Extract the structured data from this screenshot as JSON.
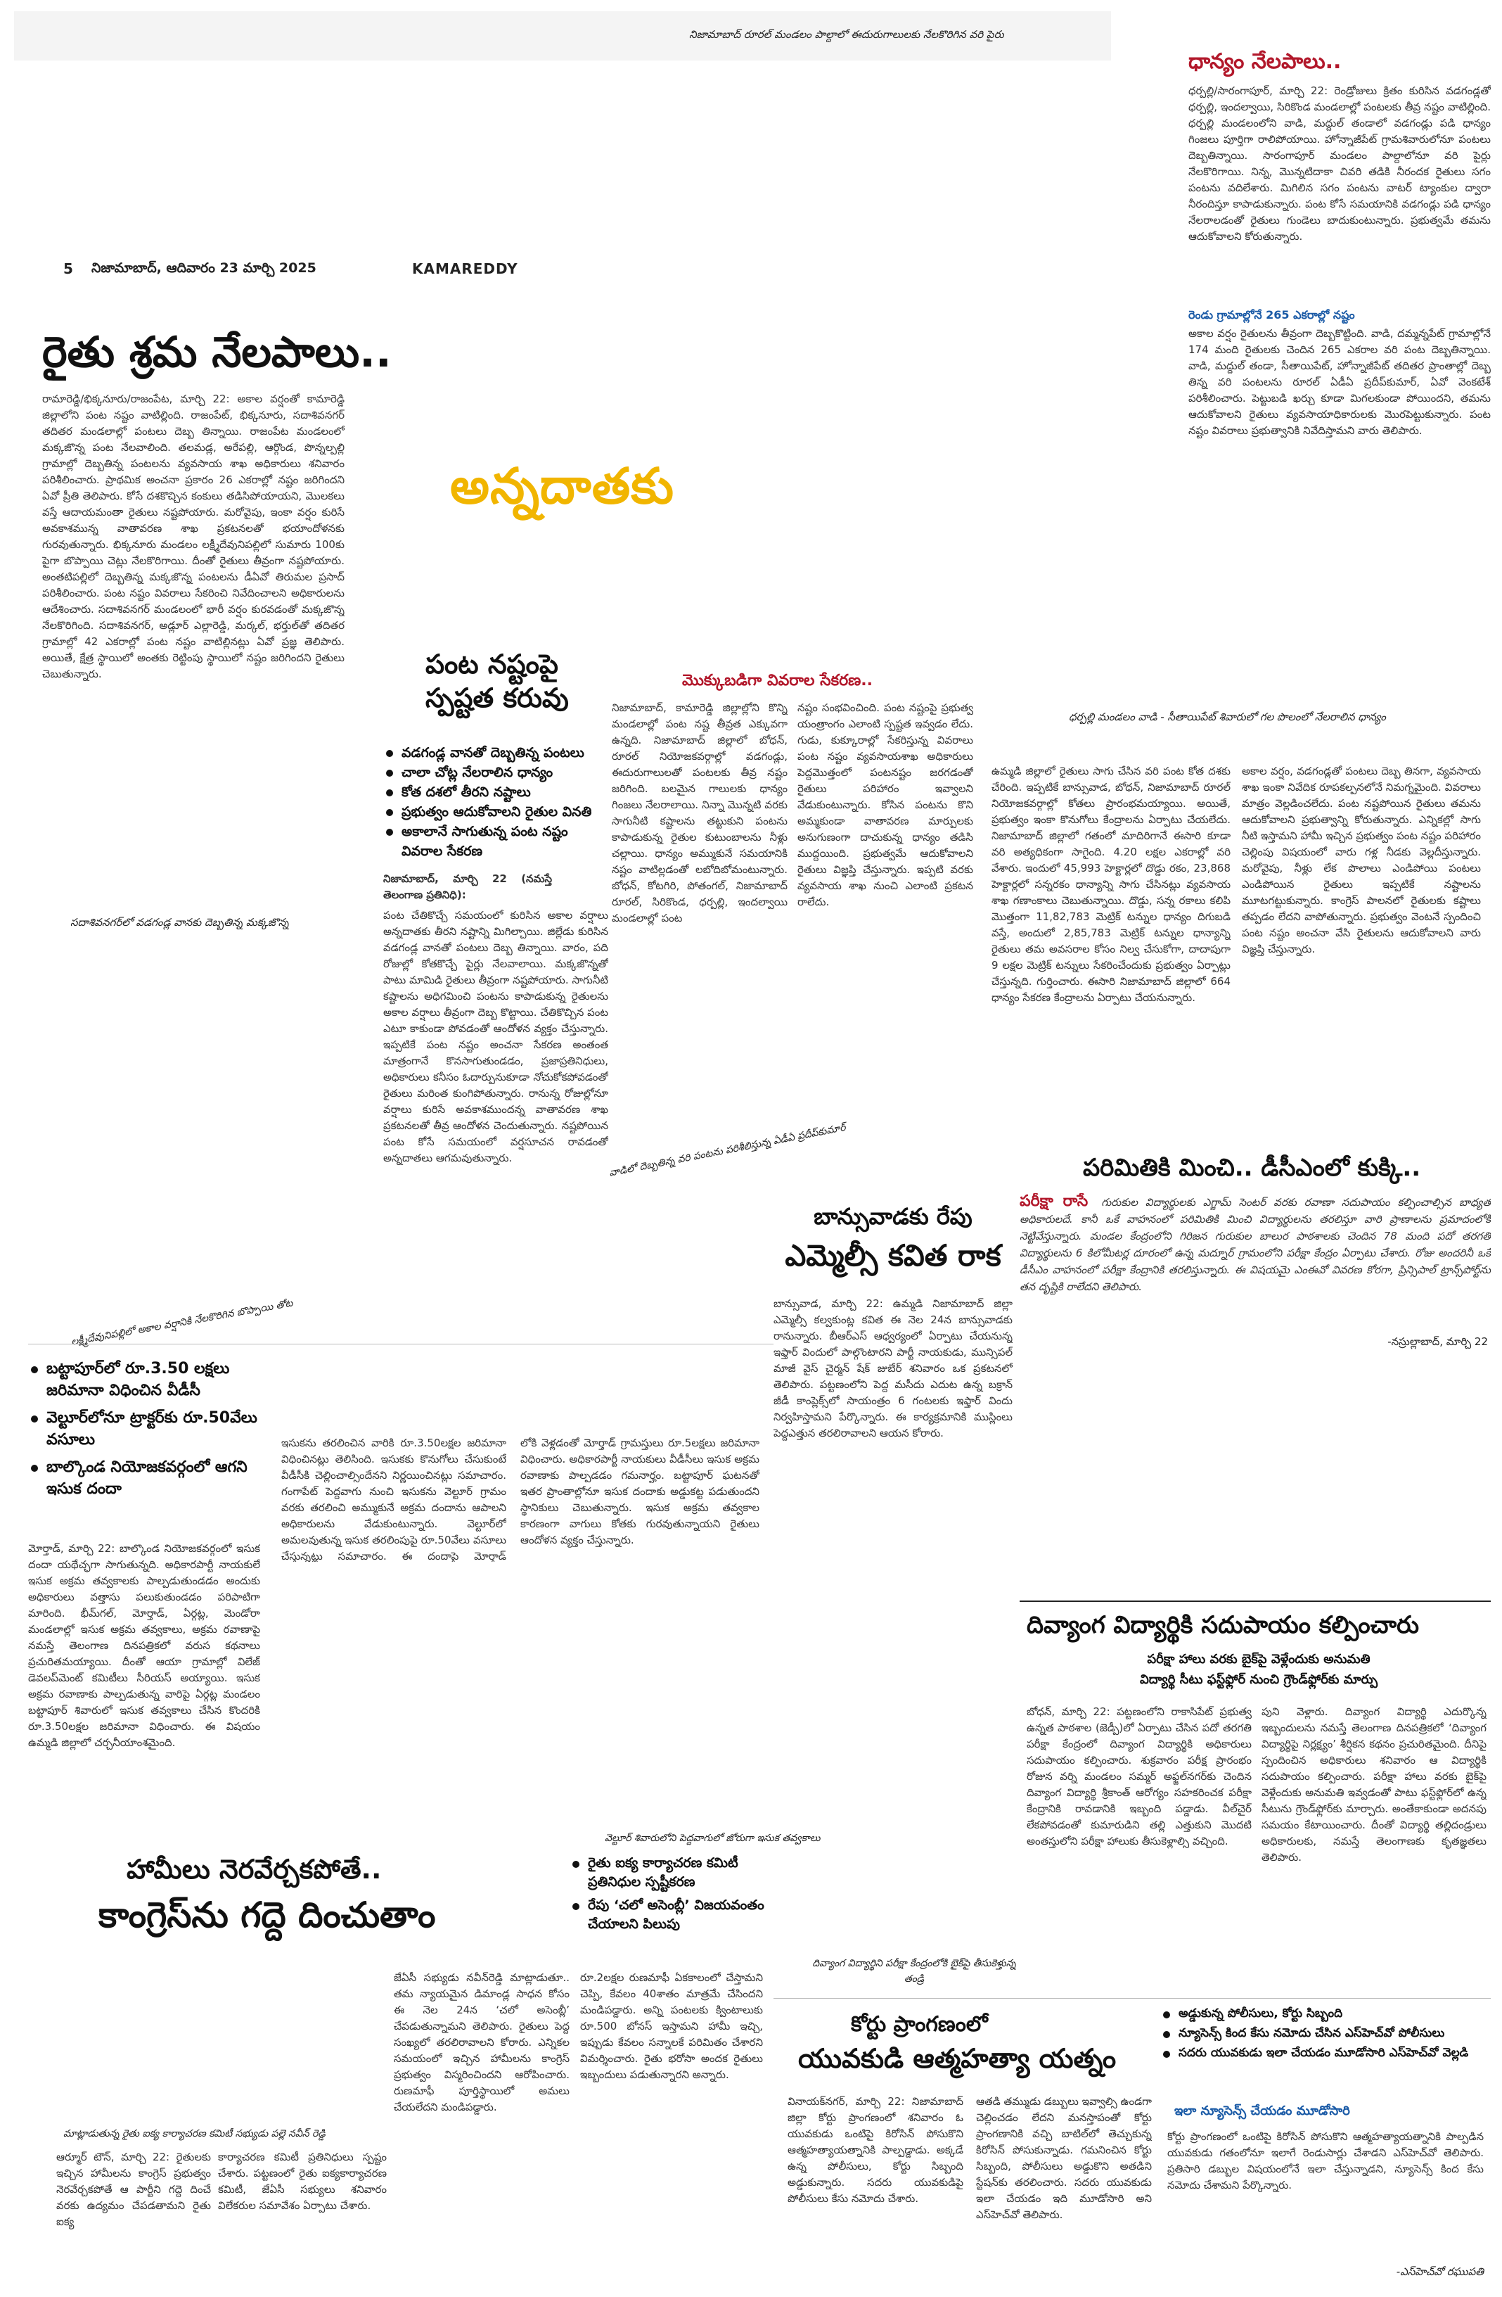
{
  "header": {
    "page_number": "5",
    "dateline": "నిజామాబాద్, ఆదివారం 23 మార్చి 2025",
    "edition": "KAMAREDDY"
  },
  "top_photo": {
    "caption": "నిజామాబాద్ రూరల్ మండలం పాల్దాలో ఈదురుగాలులకు నేలకొరిగిన వరి పైరు"
  },
  "sidebar_story": {
    "headline": "ధాన్యం నేలపాలు..",
    "body": "ధర్పల్లి/సారంగాపూర్, మార్చి 22: రెండ్రోజులు క్రితం కురిసిన వడగండ్లతో ధర్పల్లి, ఇందల్వాయి, సిరికొండ మండలాల్లో పంటలకు తీవ్ర నష్టం వాటిల్లింది. ధర్పల్లి మండలంలోని వాడి, మద్దుల్ తండాలో వడగండ్లు పడి ధాన్యం గింజలు పూర్తిగా రాలిపోయాయి. హోన్నాజీపేట్ గ్రామశివారులోనూ పంటలు దెబ్బతిన్నాయి. సారంగాపూర్ మండలం పాల్దాలోనూ వరి పైర్లు నేలకొరిగాయి. నిన్న, మొన్నటిదాకా చివరి తడికి నీరందక రైతులు సగం పంటను వదిలేశారు. మిగిలిన సగం పంటను వాటర్ ట్యాంకుల ద్వారా నీరందిస్తూ కాపాడుకున్నారు. పంట కోసే సమయానికి వడగండ్లు పడి ధాన్యం నేలరాలడంతో రైతులు గుండెలు బాదుకుంటున్నారు. ప్రభుత్వమే తమను ఆదుకోవాలని కోరుతున్నారు.",
    "subhead": "రెండు గ్రామాల్లోనే 265 ఎకరాల్లో నష్టం",
    "body2": "అకాల వర్షం రైతులను తీవ్రంగా దెబ్బకొట్టింది. వాడి, దమ్మన్నపేట్ గ్రామాల్లోనే 174 మంది రైతులకు చెందిన 265 ఎకరాల వరి పంట దెబ్బతిన్నాయి. వాడి, మద్దుల్ తండా, సీతాయిపేట్, హోన్నాజీపేట్ తదితర ప్రాంతాల్లో దెబ్బ తిన్న వరి పంటలను రూరల్ ఏడీఏ ప్రదీప్‌కుమార్, ఏవో వెంకటేశ్ పరిశీలించారు. పెట్టుబడి ఖర్చు కూడా మిగలకుండా పోయిందని, తమను ఆదుకోవాలని రైతులు వ్యవసాయాధికారులకు మొరపెట్టుకున్నారు. పంట నష్టం వివరాలు ప్రభుత్వానికి నివేదిస్తామని వారు తెలిపారు."
  },
  "main_story": {
    "headline": "రైతు శ్రమ నేలపాలు..",
    "kicker": "అన్నదాతకు",
    "body_left": "రామారెడ్డి/భిక్కనూరు/రాజంపేట, మార్చి 22: అకాల వర్షంతో కామారెడ్డి జిల్లాలోని పంట నష్టం వాటిల్లింది. రాజంపేట్, భిక్కనూరు, సదాశివనగర్ తదితర మండలాల్లో పంటలు దెబ్బ తిన్నాయి. రాజంపేట మండలంలో మక్కజొన్న పంట నేలవాలింది. తలమడ్ల, అరేపల్లి, ఆర్గొండ, పొన్నల్పల్లి గ్రామాల్లో దెబ్బతిన్న పంటలను వ్యవసాయ శాఖ అధికారులు శనివారం పరిశీలించారు. ప్రాథమిక అంచనా ప్రకారం 26 ఎకరాల్లో నష్టం జరిగిందని ఏవో ప్రీతి తెలిపారు. కోసే దశకొచ్చిన కంకులు తడిసిపోయాయని, మొలకలు వస్తే ఆదాయమంతా రైతులు నష్టపోయారు. మరోవైపు, ఇంకా వర్షం కురిసే అవకాశమున్న వాతావరణ శాఖ ప్రకటనలతో భయాందోళనకు గురవుతున్నారు. భిక్కనూరు మండలం లక్ష్మీదేవునిపల్లిలో సుమారు 100కు పైగా బొప్పాయి చెట్లు నేలకొరిగాయి. దీంతో రైతులు తీవ్రంగా నష్టపోయారు. అంతటిపల్లిలో దెబ్బతిన్న మక్కజొన్న పంటలను డీఏవో తిరుమల ప్రసాద్ పరిశీలించారు. పంట నష్టం వివరాలు సేకరించి నివేదించాలని అధికారులను ఆదేశించారు. సదాశివనగర్ మండలంలో భారీ వర్షం కురవడంతో మక్కజొన్న నేలకొరిగింది. సదాశివనగర్, అడ్లూర్ ఎల్లారెడ్డి, మర్కల్, భర్తుల్‌తో తదితర గ్రామాల్లో 42 ఎకరాల్లో పంట నష్టం వాటిల్లినట్లు ఏవో ప్రజ్ఞ తెలిపారు. అయితే, క్షేత్ర స్థాయిలో అంతకు రెట్టింపు స్థాయిలో నష్టం జరిగిందని రైతులు చెబుతున్నారు."
  },
  "photo_rain_village": {
    "caption": "సదాశివనగర్‌లో వడగండ్ల వానకు దెబ్బతిన్న మక్కజొన్న"
  },
  "photo_papaya": {
    "caption": "లక్ష్మీదేవునిపల్లిలో అకాల వర్షానికి నేలకొరిగిన బొప్పాయి తోట"
  },
  "clarity_story": {
    "headline": "పంట నష్టంపై స్పష్టత కరువు",
    "bullets": [
      "వడగండ్ల వానతో దెబ్బతిన్న పంటలు",
      "చాలా చోట్ల నేలరాలిన ధాన్యం",
      "కోత దశలో తీరని నష్టాలు",
      "ప్రభుత్వం ఆదుకోవాలని రైతుల వినతి",
      "అకాలానే సాగుతున్న పంట నష్టం వివరాల సేకరణ"
    ],
    "dateline": "నిజామాబాద్, మార్చి 22 (నమస్తే తెలంగాణ ప్రతినిధి):",
    "body": "పంట చేతికొచ్చే సమయంలో కురిసిన అకాల వర్షాలు అన్నదాతకు తీరని నష్టాన్ని మిగిల్చాయి. జిల్లేడు కురిసిన వడగండ్ల వానతో పంటలు దెబ్బ తిన్నాయి. వారం, పది రోజుల్లో కోతకొచ్చే పైర్లు నేలవాలాయి. మక్కజొన్నతో పాటు మామిడి రైతులు తీవ్రంగా నష్టపోయారు. సాగునీటి కష్టాలను అధిగమించి పంటను కాపాడుకున్న రైతులను అకాల వర్షాలు తీవ్రంగా దెబ్బ కొట్టాయి. చేతికొచ్చిన పంట ఎటూ కాకుండా పోవడంతో ఆందోళన వ్యక్తం చేస్తున్నారు. ఇప్పటికే పంట నష్టం అంచనా సేకరణ అంతంత మాత్రంగానే కొనసాగుతుండడం, ప్రజాప్రతినిధులు, అధికారులు కనీసం ఓదార్పునుకూడా నోచుకోకపోవడంతో రైతులు మరింత కుంగిపోతున్నారు. రానున్న రోజుల్లోనూ వర్షాలు కురిసే అవకాశముందన్న వాతావరణ శాఖ ప్రకటనలతో తీవ్ర ఆందోళన చెందుతున్నారు. నష్టపోయిన పంట కోసే సమయంలో వర్షసూచన రావడంతో అన్నదాతలు ఆగమవుతున్నారు."
  },
  "collection_story": {
    "headline": "మొక్కుబడిగా వివరాల సేకరణ..",
    "body_a": "నిజామాబాద్, కామారెడ్డి జిల్లాల్లోని కొన్ని మండలాల్లో పంట నష్ట తీవ్రత ఎక్కువగా ఉన్నది. నిజామాబాద్ జిల్లాలో బోధన్, రూరల్ నియోజకవర్గాల్లో వడగండ్లు, ఈదురుగాలులతో పంటలకు తీవ్ర నష్టం జరిగింది. బలమైన గాలులకు ధాన్యం గింజలు నేలరాలాయి. నిన్నా మొన్నటి వరకు సాగునీటి కష్టాలను తట్టుకుని పంటను కాపాడుకున్న రైతుల కుటుంబాలను నీళ్లు చల్లాయి. ధాన్యం అమ్ముకునే సమయానికి నష్టం వాటిల్లడంతో లబోదిబోమంటున్నారు. బోధన్, కోటగిరి, పోతంగల్, నిజామాబాద్ రూరల్, సిరికొండ, ధర్పల్లి, ఇందల్వాయి మండలాల్లో పంట",
    "body_b": "నష్టం సంభవించింది. పంట నష్టంపై ప్రభుత్వ యంత్రాంగం ఎలాంటి స్పష్టత ఇవ్వడం లేదు. గుడు, కుక్కూరాల్లో సేకరిస్తున్న వివరాలు పంట నష్టం వ్యవసాయశాఖ అధికారులు పెద్దమొత్తంలో పంటనష్టం జరగడంతో రైతులు పరిహారం ఇవ్వాలని వేడుకుంటున్నారు. కోసిన పంటను కొని అమ్మకుండా వాతావరణ మార్పులకు అనుగుణంగా దాచుకున్న ధాన్యం తడిసి ముద్దయింది. ప్రభుత్వమే ఆదుకోవాలని రైతులు విజ్ఞప్తి చేస్తున్నారు. ఇప్పటి వరకు వ్యవసాయ శాఖ నుంచి ఎలాంటి ప్రకటన రాలేదు."
  },
  "photo_darpalli": {
    "caption": "ధర్పల్లి మండలం వాడి - సీతాయిపేట్ శివారులో గల పొలంలో నేలరాలిన ధాన్యం"
  },
  "procurement_story": {
    "body_a": "ఉమ్మడి జిల్లాలో రైతులు సాగు చేసిన వరి పంట కోత దశకు చేరింది. ఇప్పటికే బాన్సువాడ, బోధన్, నిజామాబాద్ రూరల్ నియోజకవర్గాల్లో కోతలు ప్రారంభమయ్యాయి. అయితే, ప్రభుత్వం ఇంకా కొనుగోలు కేంద్రాలను ఏర్పాటు చేయలేదు. నిజామాబాద్ జిల్లాలో గతంలో మాదిరిగానే ఈసారి కూడా వరి అత్యధికంగా సాగైంది. 4.20 లక్షల ఎకరాల్లో వరి వేశారు. ఇందులో 45,993 హెక్టార్లలో దొడ్డు రకం, 23,868 హెక్టార్లలో సన్నరకం ధాన్యాన్ని సాగు చేసినట్లు వ్యవసాయ శాఖ గణాంకాలు చెబుతున్నాయి. దొడ్డు, సన్న రకాలు కలిపి మొత్తంగా 11,82,783 మెట్రిక్ టన్నుల ధాన్యం దిగుబడి వస్తే, అందులో 2,85,783 మెట్రిక్ టన్నుల ధాన్యాన్ని రైతులు తమ అవసరాల కోసం నిల్వ చేసుకోగా, దాదాపుగా 9 లక్షల మెట్రిక్ టన్నులు సేకరించేందుకు ప్రభుత్వం ఏర్పాట్లు చేస్తున్నది. గుర్తించారు. ఈసారి నిజామాబాద్ జిల్లాలో 664 ధాన్యం సేకరణ కేంద్రాలను ఏర్పాటు చేయనున్నారు.",
    "body_b": "అకాల వర్షం, వడగండ్లతో పంటలు దెబ్బ తినగా, వ్యవసాయ శాఖ ఇంకా నివేదిక రూపకల్పనలోనే నిమగ్నమైంది. వివరాలు మాత్రం వెల్లడించలేదు. పంట నష్టపోయిన రైతులు తమను ఆదుకోవాలని ప్రభుత్వాన్ని కోరుతున్నారు. ఎన్నికల్లో సాగు నీటి ఇస్తామని హామీ ఇచ్చిన ప్రభుత్వం పంట నష్టం పరిహారం చెల్లింపు విషయంలో వారు గళ్ల నీడకు వెల్లదీస్తున్నారు. మరోవైపు, నీళ్లు లేక పొలాలు ఎండిపోయి పంటలు ఎండిపోయిన రైతులు ఇప్పటికే నష్టాలను మూటగట్టుకున్నారు. కాంగ్రెస్ పాలనలో రైతులకు కష్టాలు తప్పడం లేదని వాపోతున్నారు. ప్రభుత్వం వెంటనే స్పందించి పంట నష్టం అంచనా వేసి రైతులను ఆదుకోవాలని వారు విజ్ఞప్తి చేస్తున్నారు."
  },
  "paper_leak_story": {
    "headline": "పరిమితికి మించి.. డీసీఎంలో కుక్కి..",
    "lead": "పరీక్షా రాసే",
    "body": "గురుకుల విద్యార్థులకు ఎగ్జామ్ సెంటర్ వరకు రవాణా సదుపాయం కల్పించాల్సిన బాధ్యత అధికారులదే. కానీ ఒకే వాహనంలో పరిమితికి మించి విద్యార్థులను తరలిస్తూ వారి ప్రాణాలను ప్రమాదంలోకి నెట్టివేస్తున్నారు. మండల కేంద్రంలోని గిరిజన గురుకుల బాలుర పాఠశాలకు చెందిన 78 మంది పదో తరగతి విద్యార్థులను 6 కిలోమీటర్ల దూరంలో ఉన్న మద్నూర్ గ్రామంలోని పరీక్షా కేంద్రం ఏర్పాటు చేశారు. రోజు అందరినీ ఒకే డీసీఎం వాహనంలో పరీక్షా కేంద్రానికి తరలిస్తున్నారు. ఈ విషయమై ఎంఈవో వివరణ కోరగా, ప్రిన్సిపాల్ ట్రాన్స్‌పోర్ట్‌ను తన దృష్టికి రాలేదని తెలిపారు.",
    "byline": "-నస్రుల్లాబాద్, మార్చి 22"
  },
  "kavitha_story": {
    "kicker": "బాన్సువాడకు రేపు",
    "headline": "ఎమ్మెల్సీ కవిత రాక",
    "body": "బాన్సువాడ, మార్చి 22: ఉమ్మడి నిజామాబాద్ జిల్లా ఎమ్మెల్సీ కల్వకుంట్ల కవిత ఈ నెల 24న బాన్సువాడకు రానున్నారు. బీఆర్ఎస్ ఆధ్వర్యంలో ఏర్పాటు చేయనున్న ఇఫ్తార్ విందులో పాల్గొంటారని పార్టీ నాయకుడు, మున్సిపల్ మాజీ వైస్ చైర్మన్ షేక్ జుబేర్ శనివారం ఒక ప్రకటనలో తెలిపారు. పట్టణంలోని పెద్ద మసీదు ఎదుట ఉన్న బక్రాన్ జీడీ కాంప్లెక్స్‌లో సాయంత్రం 6 గంటలకు ఇఫ్తార్ విందు నిర్వహిస్తామని పేర్కొన్నారు. ఈ కార్యక్రమానికి ముస్లింలు పెద్దఎత్తున తరలిరావాలని ఆయన కోరారు.",
    "photo_caption": "వాడిలో దెబ్బతిన్న వరి పంటను పరిశీలిస్తున్న ఏడీఏ ప్రదీప్‌కుమార్"
  },
  "sand_story": {
    "bullets": [
      "బట్టాపూర్‌లో రూ.3.50 లక్షలు జరిమానా విధించిన వీడీసీ",
      "వెల్టూర్‌లోనూ ట్రాక్టర్‌కు రూ.50వేలు వసూలు",
      "బాల్కొండ నియోజకవర్గంలో ఆగని ఇసుక దందా"
    ],
    "body_a": "మోర్తాడ్, మార్చి 22: బాల్కొండ నియోజకవర్గంలో ఇసుక దందా యథేచ్ఛగా సాగుతున్నది. అధికారపార్టీ నాయకులే ఇసుక అక్రమ తవ్వకాలకు పాల్పడుతుండడం అందుకు అధికారులు వత్తాసు పలుకుతుండడం పరిపాటిగా మారింది. భీమ్‌గల్, మోర్తాడ్, ఏర్గట్ల, మెండోరా మండలాల్లో ఇసుక అక్రమ తవ్వకాలు, అక్రమ రవాణాపై నమస్తే తెలంగాణ దినపత్రికలో వరుస కథనాలు ప్రచురితమయ్యాయి. దీంతో ఆయా గ్రామాల్లో విలేజ్ డెవలప్‌మెంట్ కమిటీలు సీరియస్ అయ్యాయి. ఇసుక అక్రమ రవాణాకు పాల్పడుతున్న వారిపై ఏర్గట్ల మండలం బట్టాపూర్ శివారులో ఇసుక తవ్వకాలు చేసిన కొందరికి రూ.3.50లక్షల జరిమానా విధించారు. ఈ విషయం ఉమ్మడి జిల్లాలో చర్చనీయాంశమైంది.",
    "body_b": "ఇసుకను తరలించిన వారికి రూ.3.50లక్షల జరిమానా విధించినట్లు తెలిసింది. ఇసుకకు కొనుగోలు చేసుకుంటే వీడీసీకి చెల్లించాల్సిందేనని నిర్ణయించినట్లు సమాచారం. గంగాపేట్ పెద్దవాగు నుంచి ఇసుకను వెల్టూర్ గ్రామం వరకు తరలించి అమ్ముకునే అక్రమ దందాను ఆపాలని అధికారులను వేడుకుంటున్నారు. వెల్టూర్‌లో అమలవుతున్న ఇసుక తరలింపుపై రూ.50వేలు వసూలు చేస్తున్నట్లు సమాచారం. ఈ దందాపై మోర్తాడ్ శివారులోని వాగు",
    "body_c": "లోకి వెళ్లడంతో మోర్తాడ్ గ్రామస్తులు రూ.5లక్షలు జరిమానా విధించారు. అధికారపార్టీ నాయకులు వీడీసీలు ఇసుక అక్రమ రవాణాకు పాల్పడడం గమనార్హం. బట్టాపూర్ ఘటనతో ఇతర ప్రాంతాల్లోనూ ఇసుక దందాకు అడ్డుకట్ట పడుతుందని స్థానికులు చెబుతున్నారు. ఇసుక అక్రమ తవ్వకాల కారణంగా వాగులు కోతకు గురవుతున్నాయని రైతులు ఆందోళన వ్యక్తం చేస్తున్నారు.",
    "photo_caption": "వెల్టూర్ శివారులోని పెద్దవాగులో జోరుగా ఇసుక తవ్వకాలు"
  },
  "disabled_student_story": {
    "headline": "దివ్యాంగ విద్యార్థికి సదుపాయం కల్పించారు",
    "subhead1": "పరీక్షా హాలు వరకు బైక్‌పై వెళ్లేందుకు అనుమతి",
    "subhead2": "విద్యార్థి సీటు ఫస్ట్‌ఫ్లోర్ నుంచి గ్రౌండ్‌ఫ్లోర్‌కు మార్పు",
    "body_a": "బోధన్, మార్చి 22: పట్టణంలోని రాకాసిపేట్ ప్రభుత్వ ఉన్నత పాఠశాల (జెడ్పీ)లో ఏర్పాటు చేసిన పదో తరగతి పరీక్షా కేంద్రంలో దివ్యాంగ విద్యార్థికి అధికారులు సదుపాయం కల్పించారు. శుక్రవారం పరీక్ష ప్రారంభం రోజున వర్ని మండలం సమ్మర్ అఫ్జల్‌నగర్‌కు చెందిన దివ్యాంగ విద్యార్థి శ్రీకాంత్ ఆరోగ్యం సహకరించక పరీక్షా కేంద్రానికి రావడానికి ఇబ్బంది పడ్డాడు. వీల్‌చైర్ లేకపోవడంతో కుమారుడిని తల్లి ఎత్తుకుని మొదటి అంతస్తులోని పరీక్షా హాలుకు తీసుకెళ్లాల్సి వచ్చింది.",
    "body_b": "పుని వెళ్లారు. దివ్యాంగ విద్యార్థి ఎదుర్కొన్న ఇబ్బందులను నమస్తే తెలంగాణ దినపత్రికలో ‘దివ్యాంగ విద్యార్థిపై నిర్లక్ష్యం’ శీర్షికన కథనం ప్రచురితమైంది. దీనిపై స్పందించిన అధికారులు శనివారం ఆ విద్యార్థికి సదుపాయం కల్పించారు. పరీక్షా హాలు వరకు బైక్‌పై వెళ్లేందుకు అనుమతి ఇవ్వడంతో పాటు ఫస్ట్‌ఫ్లోర్‌లో ఉన్న సీటును గ్రౌండ్‌ఫ్లోర్‌కు మార్చారు. అంతేకాకుండా అదనపు సమయం కేటాయించారు. దీంతో విద్యార్థి తల్లిదండ్రులు అధికారులకు, నమస్తే తెలంగాణకు కృతజ్ఞతలు తెలిపారు.",
    "photo_caption": "దివ్యాంగ విద్యార్థిని పరీక్షా కేంద్రంలోకి బైక్‌పై తీసుకెళ్తున్న తండ్రి"
  },
  "congress_story": {
    "kicker": "హామీలు నెరవేర్చకపోతే..",
    "headline": "కాంగ్రెస్‌ను గద్దె దించుతాం",
    "bullets": [
      "రైతు ఐక్య కార్యాచరణ కమిటీ ప్రతినిధుల స్పష్టీకరణ",
      "రేపు ‘చలో అసెంబ్లీ’ విజయవంతం చేయాలని పిలుపు"
    ],
    "photo_caption": "మాట్లాడుతున్న రైతు ఐక్య కార్యాచరణ కమిటీ సభ్యుడు పల్లె నవీన్ రెడ్డి",
    "body_a": "ఆర్మూర్ టౌన్, మార్చి 22: రైతులకు ఇచ్చిన హామీలను కాంగ్రెస్ ప్రభుత్వం నెరవేర్చకపోతే ఆ పార్టీని గద్దె దించే వరకు ఉద్యమం చేపడతామని రైతు ఐక్య",
    "body_b": "కార్యాచరణ కమిటీ ప్రతినిధులు స్పష్టం చేశారు. పట్టణంలో రైతు ఐక్యకార్యాచరణ కమిటీ, జేఏసీ సభ్యులు శనివారం విలేకరుల సమావేశం ఏర్పాటు చేశారు.",
    "body_c": "జేఏసీ సభ్యుడు నవీన్‌రెడ్డి మాట్లాడుతూ.. తమ న్యాయమైన డిమాండ్ల సాధన కోసం ఈ నెల 24న ‘చలో అసెంబ్లీ’ చేపడుతున్నామని తెలిపారు. రైతులు పెద్ద సంఖ్యలో తరలిరావాలని కోరారు. ఎన్నికల సమయంలో ఇచ్చిన హామీలను కాంగ్రెస్ ప్రభుత్వం విస్మరించిందని ఆరోపించారు. రుణమాఫీ పూర్తిస్థాయిలో అమలు చేయలేదని మండిపడ్డారు.",
    "body_d": "రూ.2లక్షల రుణమాఫీ ఏకకాలంలో చేస్తామని చెప్పి, కేవలం 40శాతం మాత్రమే చేసిందని మండిపడ్డారు. అన్ని పంటలకు క్వింటాలుకు రూ.500 బోనస్ ఇస్తామని హామీ ఇచ్చి, ఇప్పుడు కేవలం సన్నాలకే పరిమితం చేశారని విమర్శించారు. రైతు భరోసా అందక రైతులు ఇబ్బందులు పడుతున్నారని అన్నారు."
  },
  "suicide_story": {
    "kicker": "కోర్టు ప్రాంగణంలో",
    "headline": "యువకుడి ఆత్మహత్యా యత్నం",
    "bullets": [
      "అడ్డుకున్న పోలీసులు, కోర్టు సిబ్బంది",
      "న్యూసెన్స్ కింద కేసు నమోదు చేసిన ఎస్‌హెచ్‌వో పోలీసులు",
      "సదరు యువకుడు ఇలా చేయడం మూడోసారి ఎస్‌హెచ్‌వో వెల్లడి"
    ],
    "body_a": "వినాయక్‌నగర్, మార్చి 22: నిజామాబాద్ జిల్లా కోర్టు ప్రాంగణంలో శనివారం ఓ యువకుడు ఒంటిపై కిరోసిన్ పోసుకొని ఆత్మహత్యాయత్నానికి పాల్పడ్డాడు. అక్కడే ఉన్న పోలీసులు, కోర్టు సిబ్బంది అడ్డుకున్నారు. సదరు యువకుడిపై పోలీసులు కేసు నమోదు చేశారు.",
    "body_b": "ఆతడి తమ్ముడు డబ్బులు ఇవ్వాల్సి ఉండగా చెల్లించడం లేదని మనస్తాపంతో కోర్టు ప్రాంగణానికి వచ్చి బాటిల్‌లో తెచ్చుకున్న కిరోసిన్ పోసుకున్నాడు. గమనించిన కోర్టు సిబ్బంది, పోలీసులు అడ్డుకొని అతడిని స్టేషన్‌కు తరలించారు. సదరు యువకుడు ఇలా చేయడం ఇది మూడోసారి అని ఎస్‌హెచ్‌వో తెలిపారు.",
    "sub2": "ఇలా న్యూసెన్స్ చేయడం మూడోసారి",
    "body_c": "కోర్టు ప్రాంగణంలో ఒంటిపై కిరోసిన్ పోసుకొని ఆత్మహత్యాయత్నానికి పాల్పడిన యువకుడు గతంలోనూ ఇలాగే రెండుసార్లు చేశాడని ఎస్‌హెచ్‌వో తెలిపారు. ప్రతిసారి డబ్బుల విషయంలోనే ఇలా చేస్తున్నాడని, న్యూసెన్స్ కింద కేసు నమోదు చేశామని పేర్కొన్నారు.",
    "byline": "-ఎస్‌హెచ్‌వో రఘుపతి"
  }
}
